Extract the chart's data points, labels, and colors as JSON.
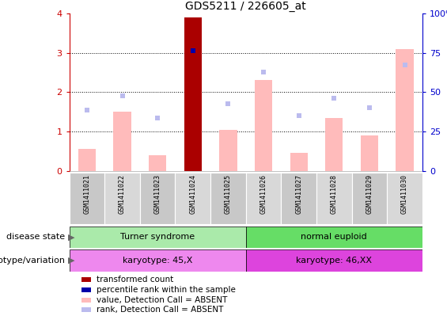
{
  "title": "GDS5211 / 226605_at",
  "samples": [
    "GSM1411021",
    "GSM1411022",
    "GSM1411023",
    "GSM1411024",
    "GSM1411025",
    "GSM1411026",
    "GSM1411027",
    "GSM1411028",
    "GSM1411029",
    "GSM1411030"
  ],
  "bar_values": [
    0.55,
    1.5,
    0.4,
    3.9,
    1.05,
    2.3,
    0.45,
    1.35,
    0.9,
    3.1
  ],
  "bar_colors": [
    "#ffbbbb",
    "#ffbbbb",
    "#ffbbbb",
    "#aa0000",
    "#ffbbbb",
    "#ffbbbb",
    "#ffbbbb",
    "#ffbbbb",
    "#ffbbbb",
    "#ffbbbb"
  ],
  "rank_values": [
    1.55,
    1.9,
    1.35,
    3.05,
    1.7,
    2.5,
    1.4,
    1.85,
    1.6,
    2.7
  ],
  "rank_colors": [
    "#bbbbee",
    "#bbbbee",
    "#bbbbee",
    "#0000aa",
    "#bbbbee",
    "#bbbbee",
    "#bbbbee",
    "#bbbbee",
    "#bbbbee",
    "#bbbbee"
  ],
  "ylim": [
    0,
    4
  ],
  "y2lim": [
    0,
    100
  ],
  "yticks": [
    0,
    1,
    2,
    3,
    4
  ],
  "y2ticks": [
    0,
    25,
    50,
    75,
    100
  ],
  "y2ticklabels": [
    "0",
    "25",
    "50",
    "75",
    "100%"
  ],
  "ytick_color": "#cc0000",
  "y2tick_color": "#0000cc",
  "disease_groups": [
    {
      "label": "Turner syndrome",
      "start": 0,
      "end": 5,
      "color": "#aaeaaa"
    },
    {
      "label": "normal euploid",
      "start": 5,
      "end": 10,
      "color": "#66dd66"
    }
  ],
  "genotype_groups": [
    {
      "label": "karyotype: 45,X",
      "start": 0,
      "end": 5,
      "color": "#ee88ee"
    },
    {
      "label": "karyotype: 46,XX",
      "start": 5,
      "end": 10,
      "color": "#dd44dd"
    }
  ],
  "disease_state_label": "disease state",
  "genotype_label": "genotype/variation",
  "legend_items": [
    {
      "color": "#aa0000",
      "label": "transformed count"
    },
    {
      "color": "#0000aa",
      "label": "percentile rank within the sample"
    },
    {
      "color": "#ffbbbb",
      "label": "value, Detection Call = ABSENT"
    },
    {
      "color": "#bbbbee",
      "label": "rank, Detection Call = ABSENT"
    }
  ],
  "bg_color": "#ffffff",
  "bar_width": 0.5,
  "rank_marker_size": 5
}
